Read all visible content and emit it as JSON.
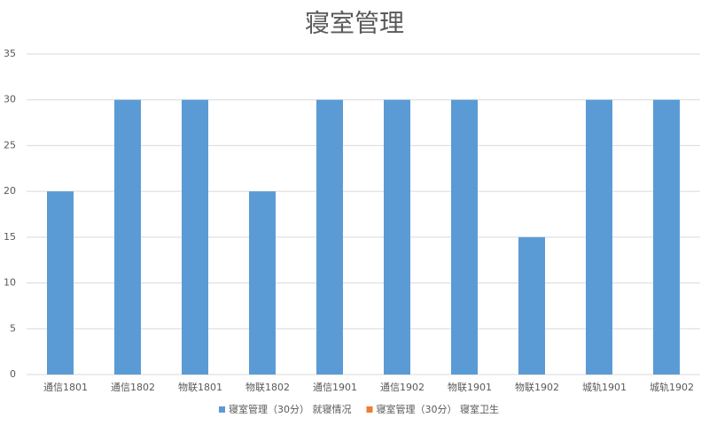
{
  "chart_data": {
    "type": "bar",
    "title": "寝室管理",
    "categories": [
      "通信1801",
      "通信1802",
      "物联1801",
      "物联1802",
      "通信1901",
      "通信1902",
      "物联1901",
      "物联1902",
      "城轨1901",
      "城轨1902"
    ],
    "series": [
      {
        "name": "寝室管理（30分） 就寝情况",
        "color": "#5b9bd5",
        "values": [
          20,
          30,
          30,
          20,
          30,
          30,
          30,
          15,
          30,
          30
        ]
      },
      {
        "name": "寝室管理（30分） 寝室卫生",
        "color": "#ed7d31",
        "values": [
          0,
          0,
          0,
          0,
          0,
          0,
          0,
          0,
          0,
          0
        ]
      }
    ],
    "ylim": [
      0,
      35
    ],
    "yticks": [
      0,
      5,
      10,
      15,
      20,
      25,
      30,
      35
    ],
    "grid": true,
    "legend": "bottom"
  }
}
